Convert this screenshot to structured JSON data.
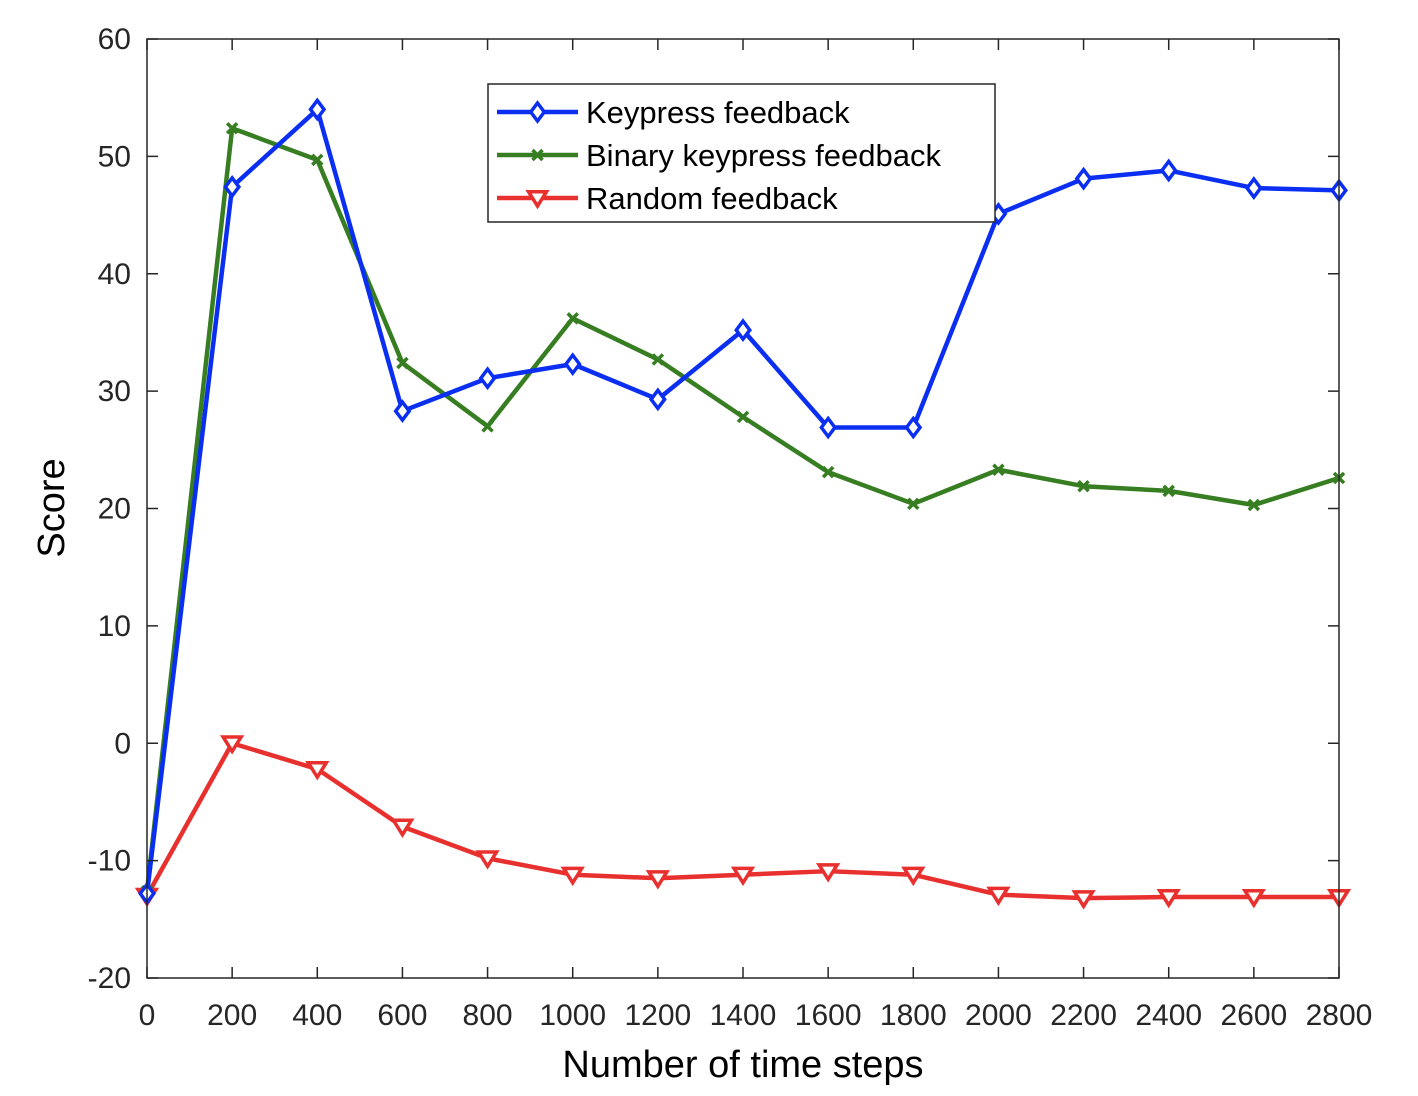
{
  "chart_data": {
    "type": "line",
    "title": "",
    "xlabel": "Number of time steps",
    "ylabel": "Score",
    "xlim": [
      0,
      2800
    ],
    "ylim": [
      -20,
      60
    ],
    "xticks": [
      0,
      200,
      400,
      600,
      800,
      1000,
      1200,
      1400,
      1600,
      1800,
      2000,
      2200,
      2400,
      2600,
      2800
    ],
    "yticks": [
      -20,
      -10,
      0,
      10,
      20,
      30,
      40,
      50,
      60
    ],
    "grid": false,
    "legend_position": "top-center",
    "x": [
      0,
      200,
      400,
      600,
      800,
      1000,
      1200,
      1400,
      1600,
      1800,
      2000,
      2200,
      2400,
      2600,
      2800
    ],
    "series": [
      {
        "name": "Keypress feedback",
        "color": "#0a2ff2",
        "marker": "diamond",
        "values": [
          -12.8,
          47.4,
          54.0,
          28.3,
          31.1,
          32.3,
          29.3,
          35.2,
          26.9,
          26.9,
          45.1,
          48.1,
          48.8,
          47.3,
          47.1
        ]
      },
      {
        "name": "Binary keypress feedback",
        "color": "#377d22",
        "marker": "x",
        "values": [
          -12.6,
          52.4,
          49.7,
          32.4,
          27.0,
          36.2,
          32.7,
          27.8,
          23.1,
          20.4,
          23.3,
          21.9,
          21.5,
          20.3,
          22.6
        ]
      },
      {
        "name": "Random feedback",
        "color": "#e8302e",
        "marker": "triangle-down",
        "values": [
          -13.0,
          0.0,
          -2.2,
          -7.1,
          -9.8,
          -11.2,
          -11.5,
          -11.2,
          -10.9,
          -11.2,
          -12.9,
          -13.2,
          -13.1,
          -13.1,
          -13.1
        ]
      }
    ]
  }
}
